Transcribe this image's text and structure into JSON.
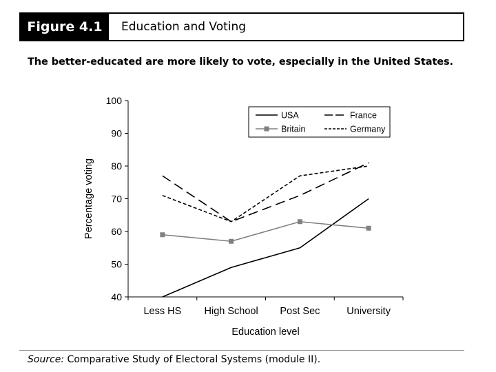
{
  "figure": {
    "label": "Figure 4.1",
    "title": "Education and Voting",
    "subtitle": "The better-educated are more likely to vote, especially in the United States.",
    "source_prefix": "Source:",
    "source_text": " Comparative Study of Electoral Systems (module II)."
  },
  "chart_data": {
    "type": "line",
    "title": "",
    "xlabel": "Education level",
    "ylabel": "Percentage voting",
    "categories": [
      "Less HS",
      "High School",
      "Post Sec",
      "University"
    ],
    "ylim": [
      40,
      100
    ],
    "yticks": [
      "40",
      "50",
      "60",
      "70",
      "80",
      "90",
      "100"
    ],
    "grid": false,
    "legend_position": "top-right",
    "series": [
      {
        "name": "USA",
        "values": [
          40,
          49,
          55,
          70
        ],
        "color": "#000000",
        "style": "solid",
        "marker": "none"
      },
      {
        "name": "France",
        "values": [
          77,
          63,
          71,
          81
        ],
        "color": "#000000",
        "style": "long-dash",
        "marker": "none"
      },
      {
        "name": "Britain",
        "values": [
          59,
          57,
          63,
          61
        ],
        "color": "#808080",
        "style": "solid",
        "marker": "square"
      },
      {
        "name": "Germany",
        "values": [
          71,
          63,
          77,
          80
        ],
        "color": "#000000",
        "style": "short-dash",
        "marker": "none"
      }
    ]
  }
}
